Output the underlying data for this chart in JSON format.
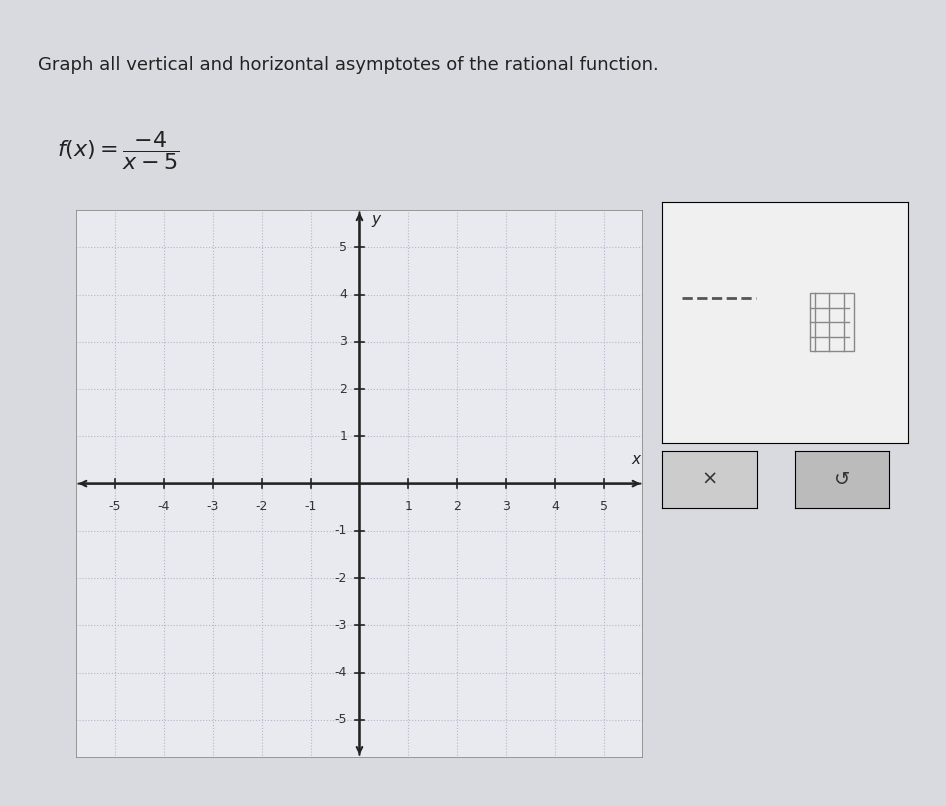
{
  "title_text": "Graph all vertical and horizontal asymptotes of the rational function.",
  "formula_text": "f(x) = \\frac{-4}{x-5}",
  "xlim": [
    -5.8,
    5.8
  ],
  "ylim": [
    -5.8,
    5.8
  ],
  "xticks": [
    -5,
    -4,
    -3,
    -2,
    -1,
    1,
    2,
    3,
    4,
    5
  ],
  "yticks": [
    -5,
    -4,
    -3,
    -2,
    -1,
    1,
    2,
    3,
    4,
    5
  ],
  "grid_color": "#b0b8c8",
  "grid_style": "dotted",
  "axis_color": "#222222",
  "background_color": "#e8eaf0",
  "plot_bg_color": "#e8eaf0",
  "outer_bg_color": "#d8dae0",
  "tick_label_color": "#333333",
  "xlabel": "x",
  "ylabel": "y",
  "fig_width": 9.46,
  "fig_height": 8.06
}
